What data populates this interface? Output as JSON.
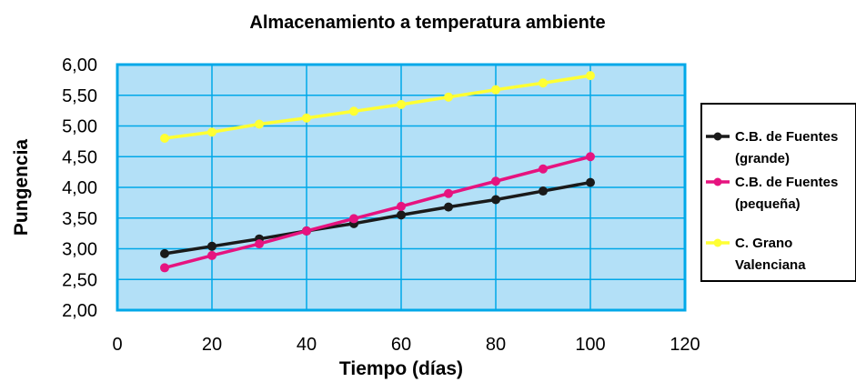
{
  "chart_data": {
    "type": "line",
    "title": "Almacenamiento a temperatura ambiente",
    "xlabel": "Tiempo (días)",
    "ylabel": "Pungencia",
    "xlim": [
      0,
      120
    ],
    "ylim": [
      2.0,
      6.0
    ],
    "x_ticks": [
      0,
      20,
      40,
      60,
      80,
      100,
      120
    ],
    "x_tick_labels": [
      "0",
      "20",
      "40",
      "60",
      "80",
      "100",
      "120"
    ],
    "y_ticks": [
      2.0,
      2.5,
      3.0,
      3.5,
      4.0,
      4.5,
      5.0,
      5.5,
      6.0
    ],
    "y_tick_labels": [
      "2,00",
      "2,50",
      "3,00",
      "3,50",
      "4,00",
      "4,50",
      "5,00",
      "5,50",
      "6,00"
    ],
    "grid": true,
    "plot_background": "#b3e0f7",
    "grid_color": "#00a8e8",
    "legend_position": "right",
    "x": [
      10,
      20,
      30,
      40,
      50,
      60,
      70,
      80,
      90,
      100
    ],
    "series": [
      {
        "name_lines": [
          "C.B. de Fuentes",
          "(grande)"
        ],
        "color": "#1a1a1a",
        "values": [
          2.92,
          3.04,
          3.16,
          3.29,
          3.41,
          3.55,
          3.68,
          3.8,
          3.94,
          4.08
        ]
      },
      {
        "name_lines": [
          "C.B. de Fuentes",
          "(pequeña)"
        ],
        "color": "#e6137f",
        "values": [
          2.69,
          2.89,
          3.08,
          3.29,
          3.49,
          3.69,
          3.9,
          4.1,
          4.3,
          4.5
        ]
      },
      {
        "name_lines": [
          "C. Grano",
          "Valenciana"
        ],
        "color": "#ffff33",
        "values": [
          4.8,
          4.9,
          5.03,
          5.13,
          5.24,
          5.35,
          5.47,
          5.59,
          5.7,
          5.82
        ]
      }
    ]
  }
}
